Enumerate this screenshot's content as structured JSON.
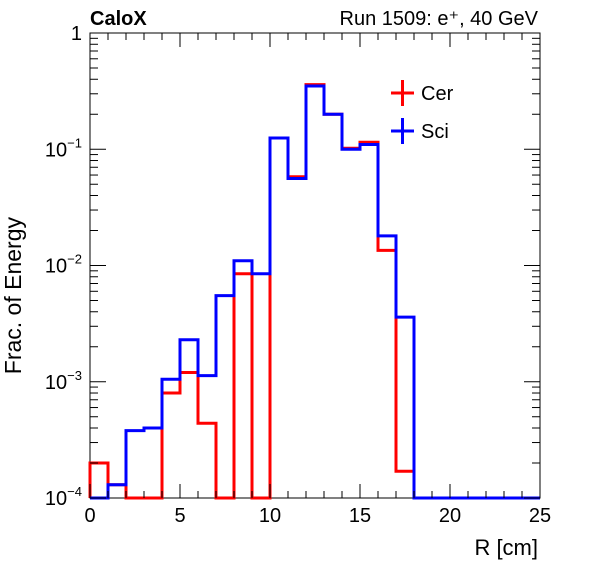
{
  "chart_data": {
    "type": "histogram-step",
    "title_left": "CaloX",
    "title_right": "Run 1509: e⁺, 40 GeV",
    "xlabel": "R [cm]",
    "ylabel": "Frac. of Energy",
    "xlim": [
      0,
      25
    ],
    "ylim": [
      0.0001,
      1
    ],
    "yscale": "log",
    "x_ticks": [
      "0",
      "5",
      "10",
      "15",
      "20",
      "25"
    ],
    "bin_edges": [
      0,
      1,
      2,
      3,
      4,
      5,
      6,
      7,
      8,
      9,
      10,
      11,
      12,
      13,
      14,
      15,
      16,
      17,
      18,
      19,
      20,
      21,
      22,
      23,
      24,
      25
    ],
    "legend_position": "top-right",
    "series": [
      {
        "name": "Cer",
        "color": "#ff0000",
        "values": [
          0.0002,
          0.00013,
          0.0001,
          0.0001,
          0.0008,
          0.0012,
          0.00044,
          0.0001,
          0.0085,
          0.0001,
          0.125,
          0.058,
          0.36,
          0.2,
          0.102,
          0.115,
          0.0135,
          0.00017,
          0.0001,
          0.0001,
          0.0001,
          0.0001,
          0.0001,
          0.0001,
          0.0001
        ]
      },
      {
        "name": "Sci",
        "color": "#0000ff",
        "values": [
          0.0001,
          0.00013,
          0.00038,
          0.0004,
          0.00105,
          0.0023,
          0.00113,
          0.0055,
          0.011,
          0.0085,
          0.125,
          0.056,
          0.35,
          0.2,
          0.1,
          0.11,
          0.018,
          0.0036,
          0.0001,
          0.0001,
          0.0001,
          0.0001,
          0.0001,
          0.0001,
          0.0001
        ]
      }
    ]
  }
}
